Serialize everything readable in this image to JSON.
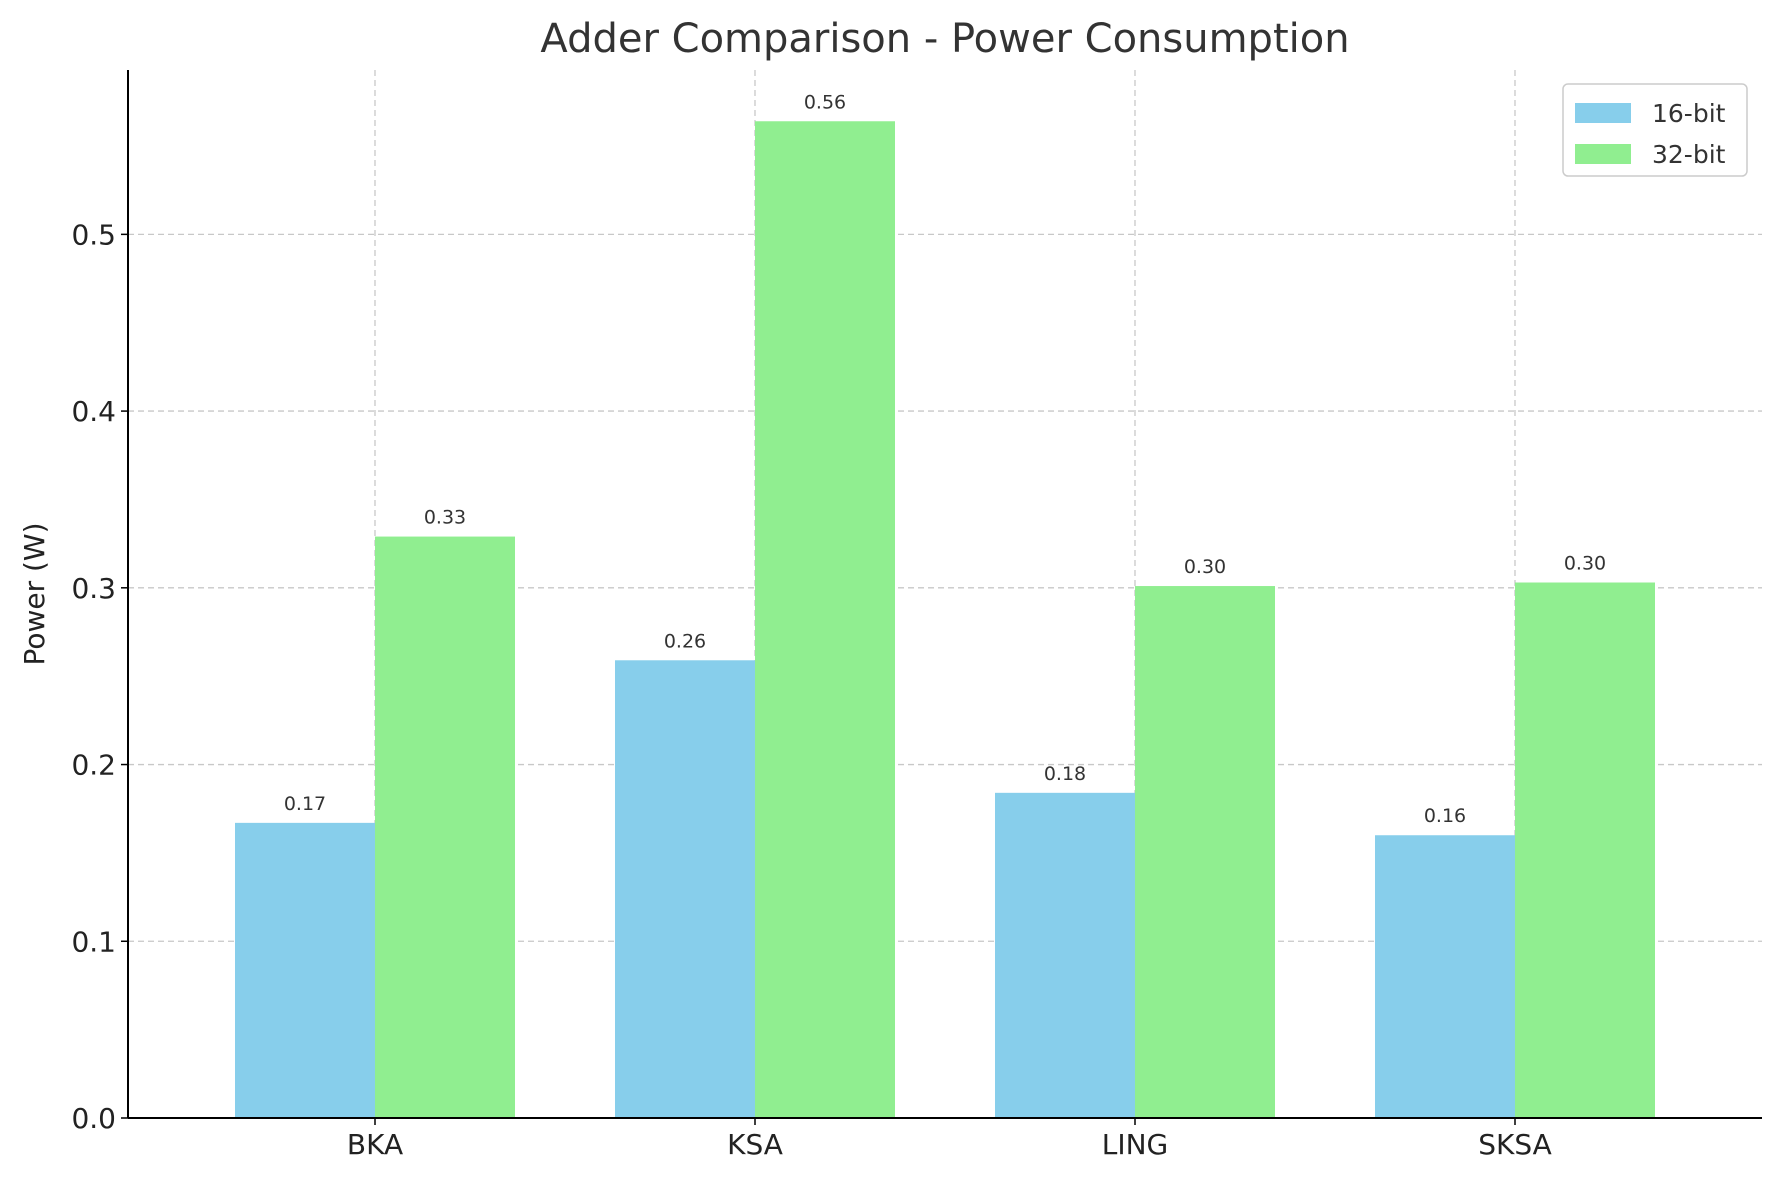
{
  "chart_data": {
    "type": "bar",
    "title": "Adder Comparison - Power Consumption",
    "xlabel": "",
    "ylabel": "Power (W)",
    "categories": [
      "BKA",
      "KSA",
      "LING",
      "SKSA"
    ],
    "series": [
      {
        "name": "16-bit",
        "color": "#87ceeb",
        "values": [
          0.167,
          0.259,
          0.184,
          0.16
        ],
        "labels": [
          "0.17",
          "0.26",
          "0.18",
          "0.16"
        ]
      },
      {
        "name": "32-bit",
        "color": "#90ee90",
        "values": [
          0.329,
          0.564,
          0.301,
          0.303
        ],
        "labels": [
          "0.33",
          "0.56",
          "0.30",
          "0.30"
        ]
      }
    ],
    "ylim": [
      0,
      0.593
    ],
    "yticks": [
      "0.0",
      "0.1",
      "0.2",
      "0.3",
      "0.4",
      "0.5"
    ],
    "grid": true,
    "legend_position": "top-right"
  }
}
